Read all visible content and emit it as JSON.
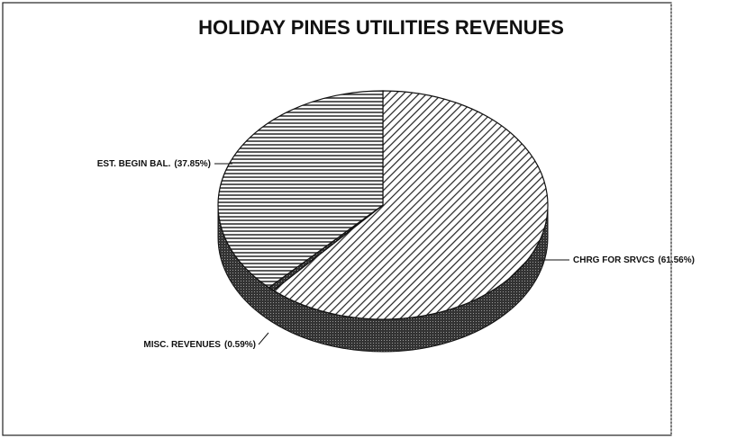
{
  "chart_data": {
    "type": "pie3d",
    "title": "HOLIDAY PINES UTILITIES REVENUES",
    "categories": [
      "CHRG FOR SRVCS",
      "MISC. REVENUES",
      "EST. BEGIN BAL."
    ],
    "values": [
      61.56,
      0.59,
      37.85
    ],
    "value_labels": [
      "(61.56%)",
      "(0.59%)",
      "(37.85%)"
    ]
  }
}
